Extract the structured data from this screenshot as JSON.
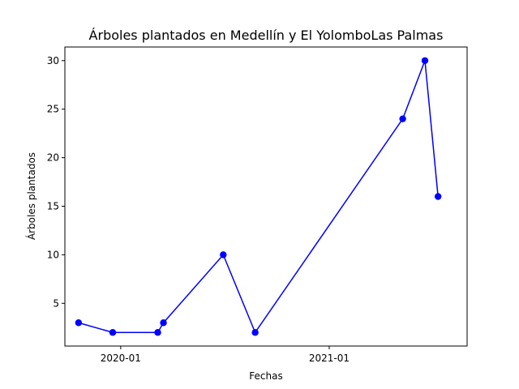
{
  "chart_data": {
    "type": "line",
    "title": "Árboles plantados en Medellín y El YolomboLas Palmas",
    "xlabel": "Fechas",
    "ylabel": "Árboles plantados",
    "x_axis_type": "date",
    "xlim": [
      "2019-09-25",
      "2021-08-31"
    ],
    "ylim": [
      0.6,
      31.4
    ],
    "x_ticks": [
      "2020-01-01",
      "2021-01-01"
    ],
    "x_tick_labels": [
      "2020-01",
      "2021-01"
    ],
    "y_ticks": [
      5,
      10,
      15,
      20,
      25,
      30
    ],
    "grid": false,
    "legend": false,
    "line_color": "#0000ff",
    "marker": "circle",
    "x": [
      "2019-10-19",
      "2019-12-18",
      "2020-03-06",
      "2020-03-16",
      "2020-06-29",
      "2020-08-24",
      "2021-05-10",
      "2021-06-18",
      "2021-07-11"
    ],
    "y": [
      3,
      2,
      2,
      3,
      10,
      2,
      24,
      30,
      16
    ]
  }
}
